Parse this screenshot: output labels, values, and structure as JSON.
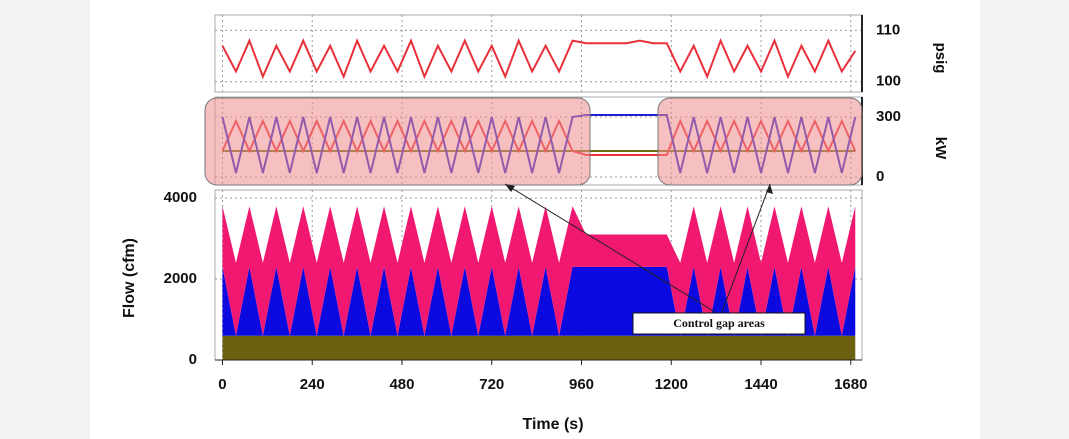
{
  "chart_data": [
    {
      "type": "line",
      "ylabel": "psig",
      "yaxis": "right",
      "grid": true,
      "xlim": [
        -20,
        1710
      ],
      "ylim": [
        98,
        113
      ],
      "yticks": [
        100,
        110
      ],
      "x": [
        0,
        36,
        72,
        108,
        144,
        180,
        216,
        252,
        288,
        324,
        360,
        396,
        432,
        468,
        504,
        540,
        576,
        612,
        648,
        684,
        720,
        756,
        792,
        828,
        864,
        900,
        936,
        972,
        1008,
        1044,
        1080,
        1116,
        1152,
        1188,
        1224,
        1260,
        1296,
        1332,
        1368,
        1404,
        1440,
        1476,
        1512,
        1548,
        1584,
        1620,
        1656,
        1692
      ],
      "series": [
        {
          "color": "#e8303a",
          "values": [
            107,
            102,
            108,
            101,
            107,
            102,
            108,
            102,
            107,
            101,
            108,
            102,
            107,
            102,
            108,
            101,
            107,
            102,
            108,
            102,
            107,
            101,
            108,
            102,
            107,
            102,
            108,
            107.5,
            107.5,
            107.5,
            107.5,
            108,
            107.5,
            107.5,
            102,
            107,
            101,
            108,
            102,
            107,
            102,
            108,
            101,
            107,
            102,
            108,
            102,
            106
          ]
        }
      ]
    },
    {
      "type": "line",
      "ylabel": "kW",
      "yaxis": "right",
      "grid": true,
      "xlim": [
        -20,
        1710
      ],
      "ylim": [
        -40,
        400
      ],
      "yticks": [
        0,
        300
      ],
      "x": [
        0,
        36,
        72,
        108,
        144,
        180,
        216,
        252,
        288,
        324,
        360,
        396,
        432,
        468,
        504,
        540,
        576,
        612,
        648,
        684,
        720,
        756,
        792,
        828,
        864,
        900,
        936,
        972,
        1008,
        1044,
        1080,
        1116,
        1152,
        1188,
        1224,
        1260,
        1296,
        1332,
        1368,
        1404,
        1440,
        1476,
        1512,
        1548,
        1584,
        1620,
        1656,
        1692
      ],
      "series": [
        {
          "color": "#6b6b10",
          "values": [
            130,
            130,
            130,
            130,
            130,
            130,
            130,
            130,
            130,
            130,
            130,
            130,
            130,
            130,
            130,
            130,
            130,
            130,
            130,
            130,
            130,
            130,
            130,
            130,
            130,
            130,
            130,
            130,
            130,
            130,
            130,
            130,
            130,
            130,
            130,
            130,
            130,
            130,
            130,
            130,
            130,
            130,
            130,
            130,
            130,
            130,
            130,
            130
          ]
        },
        {
          "color": "#e8303a",
          "values": [
            130,
            280,
            130,
            280,
            130,
            280,
            130,
            280,
            130,
            280,
            130,
            280,
            130,
            280,
            130,
            280,
            130,
            280,
            130,
            280,
            130,
            280,
            130,
            280,
            130,
            280,
            130,
            110,
            110,
            110,
            110,
            110,
            110,
            110,
            280,
            130,
            280,
            130,
            280,
            130,
            280,
            130,
            280,
            130,
            280,
            130,
            280,
            130
          ]
        },
        {
          "color": "#2020d0",
          "values": [
            300,
            20,
            300,
            20,
            300,
            20,
            300,
            20,
            300,
            20,
            300,
            20,
            300,
            20,
            300,
            20,
            300,
            20,
            300,
            20,
            300,
            20,
            300,
            20,
            300,
            20,
            300,
            310,
            310,
            310,
            310,
            310,
            310,
            310,
            20,
            300,
            20,
            300,
            20,
            300,
            20,
            300,
            20,
            300,
            20,
            300,
            20,
            300
          ]
        }
      ]
    },
    {
      "type": "area",
      "ylabel": "Flow (cfm)",
      "xlabel": "Time (s)",
      "yaxis": "left",
      "grid": true,
      "annotation": "Control gap areas",
      "xlim": [
        -20,
        1710
      ],
      "ylim": [
        0,
        4200
      ],
      "yticks": [
        0,
        2000,
        4000
      ],
      "xticks": [
        0,
        240,
        480,
        720,
        960,
        1200,
        1440,
        1680
      ],
      "x": [
        0,
        36,
        72,
        108,
        144,
        180,
        216,
        252,
        288,
        324,
        360,
        396,
        432,
        468,
        504,
        540,
        576,
        612,
        648,
        684,
        720,
        756,
        792,
        828,
        864,
        900,
        936,
        972,
        1008,
        1044,
        1080,
        1116,
        1152,
        1188,
        1224,
        1260,
        1296,
        1332,
        1368,
        1404,
        1440,
        1476,
        1512,
        1548,
        1584,
        1620,
        1656,
        1692
      ],
      "series": [
        {
          "color": "#6b6010",
          "values": [
            600,
            600,
            600,
            600,
            600,
            600,
            600,
            600,
            600,
            600,
            600,
            600,
            600,
            600,
            600,
            600,
            600,
            600,
            600,
            600,
            600,
            600,
            600,
            600,
            600,
            600,
            600,
            600,
            600,
            600,
            600,
            600,
            600,
            600,
            600,
            600,
            600,
            600,
            600,
            600,
            600,
            600,
            600,
            600,
            600,
            600,
            600,
            600
          ]
        },
        {
          "color": "#0a0ae0",
          "values": [
            1700,
            0,
            1700,
            0,
            1700,
            0,
            1700,
            0,
            1700,
            0,
            1700,
            0,
            1700,
            0,
            1700,
            0,
            1700,
            0,
            1700,
            0,
            1700,
            0,
            1700,
            0,
            1700,
            0,
            1700,
            1700,
            1700,
            1700,
            1700,
            1700,
            1700,
            1700,
            0,
            1700,
            0,
            1700,
            0,
            1700,
            0,
            1700,
            0,
            1700,
            0,
            1700,
            0,
            1700
          ]
        },
        {
          "color": "#f01870",
          "values": [
            1500,
            1800,
            1500,
            1800,
            1500,
            1800,
            1500,
            1800,
            1500,
            1800,
            1500,
            1800,
            1500,
            1800,
            1500,
            1800,
            1500,
            1800,
            1500,
            1800,
            1500,
            1800,
            1500,
            1800,
            1500,
            1800,
            1500,
            800,
            800,
            800,
            800,
            800,
            800,
            800,
            1800,
            1500,
            1800,
            1500,
            1800,
            1500,
            1800,
            1500,
            1800,
            1500,
            1800,
            1500,
            1800,
            1500
          ]
        }
      ]
    }
  ]
}
